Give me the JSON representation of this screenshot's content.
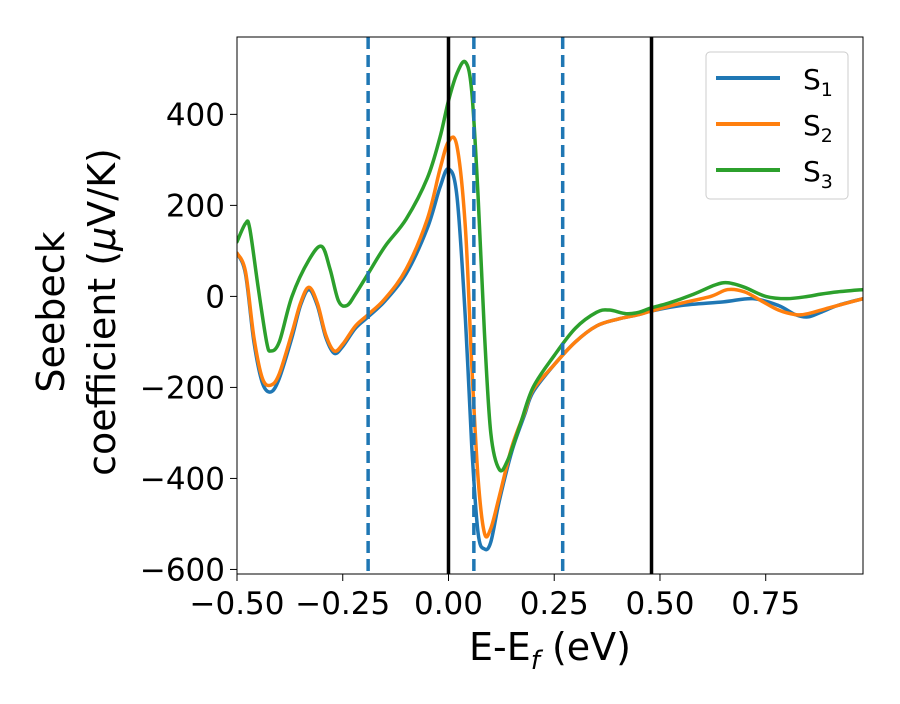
{
  "chart_data": {
    "type": "line",
    "xlabel": "E-E",
    "xlabel_sub": "f",
    "xlabel_unit": " (eV)",
    "ylabel_line1": "Seebeck",
    "ylabel_line2": "coefficient  (",
    "ylabel_mu": "μ",
    "ylabel_unit": "V/K)",
    "xlim": [
      -0.5,
      0.98
    ],
    "ylim": [
      -610,
      570
    ],
    "xticks": [
      -0.5,
      -0.25,
      0.0,
      0.25,
      0.5,
      0.75
    ],
    "xtick_labels": [
      "−0.50",
      "−0.25",
      "0.00",
      "0.25",
      "0.50",
      "0.75"
    ],
    "yticks": [
      -600,
      -400,
      -200,
      0,
      200,
      400
    ],
    "ytick_labels": [
      "−600",
      "−400",
      "−200",
      "0",
      "200",
      "400"
    ],
    "grid": false,
    "legend_position": "top-right",
    "colors": {
      "S1": "#1f77b4",
      "S2": "#ff7f0e",
      "S3": "#2ca02c",
      "vline_solid": "#000000",
      "vline_dashed": "#1f77b4"
    },
    "vlines_solid": [
      0.0,
      0.48
    ],
    "vlines_dashed": [
      -0.19,
      0.06,
      0.27
    ],
    "series": [
      {
        "name": "S",
        "name_sub": "1",
        "color": "#1f77b4",
        "points": [
          [
            -0.5,
            95
          ],
          [
            -0.48,
            50
          ],
          [
            -0.46,
            -100
          ],
          [
            -0.44,
            -190
          ],
          [
            -0.42,
            -210
          ],
          [
            -0.4,
            -180
          ],
          [
            -0.37,
            -90
          ],
          [
            -0.35,
            -20
          ],
          [
            -0.33,
            15
          ],
          [
            -0.31,
            -20
          ],
          [
            -0.29,
            -90
          ],
          [
            -0.27,
            -125
          ],
          [
            -0.25,
            -110
          ],
          [
            -0.22,
            -70
          ],
          [
            -0.19,
            -45
          ],
          [
            -0.15,
            -10
          ],
          [
            -0.1,
            50
          ],
          [
            -0.05,
            150
          ],
          [
            -0.02,
            240
          ],
          [
            0.0,
            280
          ],
          [
            0.02,
            220
          ],
          [
            0.04,
            -50
          ],
          [
            0.055,
            -330
          ],
          [
            0.07,
            -520
          ],
          [
            0.085,
            -555
          ],
          [
            0.1,
            -540
          ],
          [
            0.12,
            -450
          ],
          [
            0.15,
            -340
          ],
          [
            0.18,
            -260
          ],
          [
            0.2,
            -210
          ],
          [
            0.25,
            -150
          ],
          [
            0.3,
            -100
          ],
          [
            0.35,
            -65
          ],
          [
            0.4,
            -50
          ],
          [
            0.45,
            -40
          ],
          [
            0.48,
            -32
          ],
          [
            0.55,
            -20
          ],
          [
            0.65,
            -12
          ],
          [
            0.72,
            -5
          ],
          [
            0.78,
            -20
          ],
          [
            0.82,
            -40
          ],
          [
            0.85,
            -45
          ],
          [
            0.88,
            -35
          ],
          [
            0.92,
            -20
          ],
          [
            0.98,
            -5
          ]
        ]
      },
      {
        "name": "S",
        "name_sub": "2",
        "color": "#ff7f0e",
        "points": [
          [
            -0.5,
            95
          ],
          [
            -0.48,
            55
          ],
          [
            -0.46,
            -90
          ],
          [
            -0.44,
            -180
          ],
          [
            -0.42,
            -195
          ],
          [
            -0.4,
            -170
          ],
          [
            -0.37,
            -80
          ],
          [
            -0.35,
            -15
          ],
          [
            -0.33,
            20
          ],
          [
            -0.31,
            -15
          ],
          [
            -0.29,
            -85
          ],
          [
            -0.27,
            -120
          ],
          [
            -0.25,
            -105
          ],
          [
            -0.22,
            -65
          ],
          [
            -0.19,
            -40
          ],
          [
            -0.15,
            -5
          ],
          [
            -0.1,
            60
          ],
          [
            -0.05,
            170
          ],
          [
            -0.02,
            280
          ],
          [
            0.0,
            340
          ],
          [
            0.02,
            330
          ],
          [
            0.04,
            150
          ],
          [
            0.055,
            -150
          ],
          [
            0.07,
            -400
          ],
          [
            0.085,
            -520
          ],
          [
            0.1,
            -510
          ],
          [
            0.12,
            -440
          ],
          [
            0.15,
            -330
          ],
          [
            0.18,
            -255
          ],
          [
            0.2,
            -205
          ],
          [
            0.25,
            -150
          ],
          [
            0.3,
            -100
          ],
          [
            0.35,
            -65
          ],
          [
            0.4,
            -50
          ],
          [
            0.45,
            -40
          ],
          [
            0.48,
            -32
          ],
          [
            0.55,
            -15
          ],
          [
            0.62,
            0
          ],
          [
            0.66,
            15
          ],
          [
            0.7,
            10
          ],
          [
            0.74,
            -10
          ],
          [
            0.78,
            -30
          ],
          [
            0.82,
            -40
          ],
          [
            0.85,
            -38
          ],
          [
            0.9,
            -25
          ],
          [
            0.98,
            -5
          ]
        ]
      },
      {
        "name": "S",
        "name_sub": "3",
        "color": "#2ca02c",
        "points": [
          [
            -0.5,
            120
          ],
          [
            -0.48,
            160
          ],
          [
            -0.47,
            150
          ],
          [
            -0.45,
            20
          ],
          [
            -0.43,
            -100
          ],
          [
            -0.42,
            -120
          ],
          [
            -0.4,
            -100
          ],
          [
            -0.37,
            0
          ],
          [
            -0.33,
            80
          ],
          [
            -0.3,
            110
          ],
          [
            -0.28,
            60
          ],
          [
            -0.26,
            -10
          ],
          [
            -0.24,
            -20
          ],
          [
            -0.22,
            5
          ],
          [
            -0.19,
            50
          ],
          [
            -0.15,
            110
          ],
          [
            -0.1,
            170
          ],
          [
            -0.05,
            260
          ],
          [
            -0.02,
            350
          ],
          [
            0.0,
            430
          ],
          [
            0.02,
            490
          ],
          [
            0.04,
            515
          ],
          [
            0.055,
            450
          ],
          [
            0.07,
            220
          ],
          [
            0.085,
            -80
          ],
          [
            0.1,
            -300
          ],
          [
            0.12,
            -380
          ],
          [
            0.14,
            -360
          ],
          [
            0.17,
            -280
          ],
          [
            0.2,
            -200
          ],
          [
            0.25,
            -130
          ],
          [
            0.3,
            -70
          ],
          [
            0.35,
            -35
          ],
          [
            0.38,
            -30
          ],
          [
            0.42,
            -38
          ],
          [
            0.45,
            -35
          ],
          [
            0.48,
            -25
          ],
          [
            0.52,
            -15
          ],
          [
            0.58,
            5
          ],
          [
            0.63,
            25
          ],
          [
            0.66,
            30
          ],
          [
            0.7,
            20
          ],
          [
            0.75,
            0
          ],
          [
            0.8,
            -5
          ],
          [
            0.85,
            0
          ],
          [
            0.88,
            5
          ],
          [
            0.92,
            10
          ],
          [
            0.98,
            15
          ]
        ]
      }
    ]
  }
}
